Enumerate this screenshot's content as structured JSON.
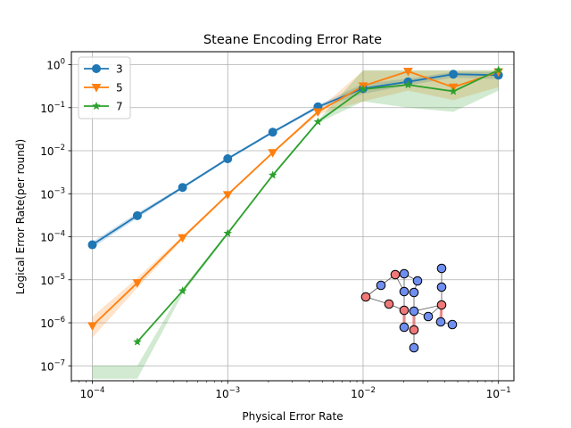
{
  "chart_data": {
    "type": "line",
    "title": "Steane Encoding Error Rate",
    "xlabel": "Physical Error Rate",
    "ylabel": "Logical Error Rate(per round)",
    "xscale": "log",
    "yscale": "log",
    "xlim": [
      7e-05,
      0.13
    ],
    "ylim": [
      4.5e-08,
      2.0
    ],
    "grid": true,
    "legend_position": "top-left",
    "x_ticks": [
      {
        "value": 0.0001,
        "base": "10",
        "exp": "−4"
      },
      {
        "value": 0.001,
        "base": "10",
        "exp": "−3"
      },
      {
        "value": 0.01,
        "base": "10",
        "exp": "−2"
      },
      {
        "value": 0.1,
        "base": "10",
        "exp": "−1"
      }
    ],
    "y_ticks": [
      {
        "value": 1e-07,
        "base": "10",
        "exp": "−7"
      },
      {
        "value": 1e-06,
        "base": "10",
        "exp": "−6"
      },
      {
        "value": 1e-05,
        "base": "10",
        "exp": "−5"
      },
      {
        "value": 0.0001,
        "base": "10",
        "exp": "−4"
      },
      {
        "value": 0.001,
        "base": "10",
        "exp": "−3"
      },
      {
        "value": 0.01,
        "base": "10",
        "exp": "−2"
      },
      {
        "value": 0.1,
        "base": "10",
        "exp": "−1"
      },
      {
        "value": 1,
        "base": "10",
        "exp": "0"
      }
    ],
    "x": [
      0.0001,
      0.000215,
      0.000464,
      0.001,
      0.00215,
      0.00464,
      0.01,
      0.0215,
      0.0464,
      0.1
    ],
    "series": [
      {
        "name": "3",
        "color": "#1f77b4",
        "marker": "circle",
        "values": [
          6.5e-05,
          0.00031,
          0.0014,
          0.0065,
          0.027,
          0.105,
          0.28,
          0.4,
          0.6,
          0.57
        ],
        "band_low": [
          5.5e-05,
          0.00027,
          0.0013,
          0.006,
          0.025,
          0.095,
          0.21,
          0.33,
          0.5,
          0.46
        ],
        "band_high": [
          7.6e-05,
          0.00036,
          0.0015,
          0.007,
          0.029,
          0.115,
          0.36,
          0.47,
          0.68,
          0.68
        ]
      },
      {
        "name": "5",
        "color": "#ff7f0e",
        "marker": "triangle-down",
        "values": [
          8.5e-07,
          8.5e-06,
          9.5e-05,
          0.00095,
          0.009,
          0.08,
          0.32,
          0.7,
          0.3,
          0.68
        ],
        "band_low": [
          4.5e-07,
          6.5e-06,
          8.5e-05,
          0.00089,
          0.0085,
          0.07,
          0.14,
          0.25,
          0.15,
          0.3
        ],
        "band_high": [
          1.4e-06,
          1.1e-05,
          0.000105,
          0.001,
          0.0095,
          0.09,
          0.72,
          0.72,
          0.72,
          0.72
        ]
      },
      {
        "name": "7",
        "color": "#2ca02c",
        "marker": "star",
        "values": [
          null,
          3.6e-07,
          5.5e-06,
          0.00012,
          0.0027,
          0.047,
          0.27,
          0.34,
          0.24,
          0.75
        ],
        "band_low": [
          5e-08,
          5e-08,
          4.7e-06,
          0.00011,
          0.0026,
          0.044,
          0.14,
          0.1,
          0.08,
          0.25
        ],
        "band_high": [
          1e-07,
          1e-07,
          6.3e-06,
          0.00013,
          0.0028,
          0.05,
          0.75,
          0.75,
          0.75,
          0.75
        ]
      }
    ],
    "inset": {
      "description_type": "graph",
      "node_colors": {
        "blue": "#6f8ef0",
        "red": "#f07878"
      }
    }
  }
}
